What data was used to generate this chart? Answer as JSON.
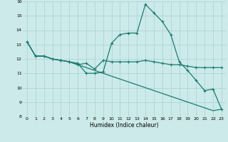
{
  "xlabel": "Humidex (Indice chaleur)",
  "x_values": [
    0,
    1,
    2,
    3,
    4,
    5,
    6,
    7,
    8,
    9,
    10,
    11,
    12,
    13,
    14,
    15,
    16,
    17,
    18,
    19,
    20,
    21,
    22,
    23
  ],
  "line1": [
    13.2,
    12.2,
    12.2,
    12.0,
    11.9,
    11.8,
    11.7,
    11.0,
    11.0,
    11.1,
    13.1,
    13.7,
    13.8,
    13.8,
    15.8,
    15.2,
    14.6,
    13.7,
    11.8,
    11.2,
    10.5,
    9.8,
    9.9,
    8.5
  ],
  "line2": [
    13.2,
    12.2,
    12.2,
    12.0,
    11.9,
    11.8,
    11.6,
    11.7,
    11.3,
    11.9,
    11.8,
    11.8,
    11.8,
    11.8,
    11.9,
    11.8,
    11.7,
    11.6,
    11.6,
    11.5,
    11.4,
    11.4,
    11.4,
    11.4
  ],
  "line3": [
    13.2,
    12.2,
    12.2,
    12.0,
    11.9,
    11.8,
    11.6,
    11.4,
    11.2,
    11.0,
    10.8,
    10.6,
    10.4,
    10.2,
    10.0,
    9.8,
    9.6,
    9.4,
    9.2,
    9.0,
    8.8,
    8.6,
    8.4,
    8.5
  ],
  "ylim": [
    8,
    16
  ],
  "xlim": [
    -0.5,
    23.5
  ],
  "yticks": [
    8,
    9,
    10,
    11,
    12,
    13,
    14,
    15,
    16
  ],
  "xticks": [
    0,
    1,
    2,
    3,
    4,
    5,
    6,
    7,
    8,
    9,
    10,
    11,
    12,
    13,
    14,
    15,
    16,
    17,
    18,
    19,
    20,
    21,
    22,
    23
  ],
  "line_color": "#1a7a6e",
  "bg_color": "#cceaea",
  "grid_color": "#aacfcf",
  "marker": "+"
}
